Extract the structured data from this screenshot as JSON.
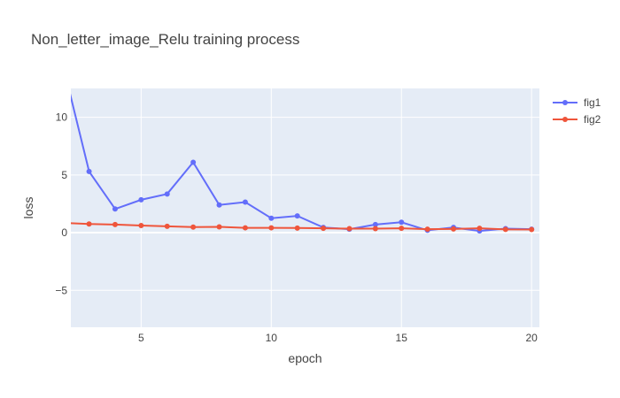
{
  "chart_data": {
    "type": "line",
    "title": "Non_letter_image_Relu training process",
    "xlabel": "epoch",
    "ylabel": "loss",
    "xlim": [
      2.3,
      20.3
    ],
    "ylim": [
      -8.2,
      12.5
    ],
    "x_ticks": [
      5,
      10,
      15,
      20
    ],
    "y_ticks": [
      10,
      5,
      0,
      -5
    ],
    "y_tick_labels": [
      "10",
      "5",
      "0",
      "−5"
    ],
    "grid": true,
    "legend_position": "top-right",
    "x": [
      2,
      3,
      4,
      5,
      6,
      7,
      8,
      9,
      10,
      11,
      12,
      13,
      14,
      15,
      16,
      17,
      18,
      19,
      20
    ],
    "series": [
      {
        "name": "fig1",
        "color": "#636efa",
        "values": [
          14.5,
          5.3,
          2.05,
          2.85,
          3.35,
          6.1,
          2.4,
          2.65,
          1.25,
          1.45,
          0.45,
          0.3,
          0.7,
          0.9,
          0.2,
          0.45,
          0.15,
          0.35,
          0.3
        ]
      },
      {
        "name": "fig2",
        "color": "#ef553b",
        "values": [
          0.85,
          0.75,
          0.7,
          0.62,
          0.55,
          0.48,
          0.5,
          0.42,
          0.42,
          0.4,
          0.38,
          0.35,
          0.35,
          0.38,
          0.3,
          0.32,
          0.38,
          0.28,
          0.27
        ]
      }
    ]
  }
}
